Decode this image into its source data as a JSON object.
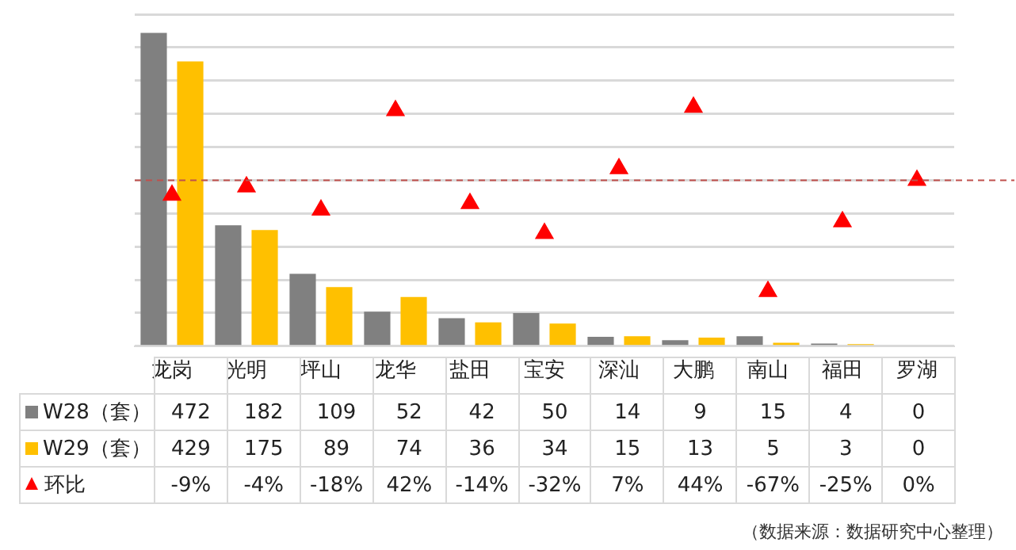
{
  "chart_data": {
    "type": "bar",
    "categories": [
      "龙岗",
      "光明",
      "坪山",
      "龙华",
      "盐田",
      "宝安",
      "深汕",
      "大鹏",
      "南山",
      "福田",
      "罗湖"
    ],
    "series": [
      {
        "name": "W28（套）",
        "color": "#808080",
        "values": [
          472,
          182,
          109,
          52,
          42,
          50,
          14,
          9,
          15,
          4,
          0
        ]
      },
      {
        "name": "W29（套）",
        "color": "#ffc000",
        "values": [
          429,
          175,
          89,
          74,
          36,
          34,
          15,
          13,
          5,
          3,
          0
        ]
      },
      {
        "name": "环比",
        "type": "scatter",
        "axis": "y2",
        "marker": "triangle",
        "color": "#ff0000",
        "values": [
          -9,
          -4,
          -18,
          42,
          -14,
          -32,
          7,
          44,
          -67,
          -25,
          0
        ],
        "value_labels": [
          "-9%",
          "-4%",
          "-18%",
          "42%",
          "-14%",
          "-32%",
          "7%",
          "44%",
          "-67%",
          "-25%",
          "0%"
        ]
      }
    ],
    "ylim": [
      0,
      500
    ],
    "yticks": [
      {
        "value": 0,
        "label": null
      },
      {
        "value": 50,
        "label": null
      },
      {
        "value": 100,
        "label": null
      },
      {
        "value": 150,
        "label": null
      },
      {
        "value": 200,
        "label": null
      },
      {
        "value": 250,
        "label": null
      },
      {
        "value": 300,
        "label": null
      },
      {
        "value": 350,
        "label": null
      },
      {
        "value": 400,
        "label": null
      },
      {
        "value": 450,
        "label": null
      },
      {
        "value": 500,
        "label": null
      }
    ],
    "y2lim": [
      -100,
      100
    ],
    "grid": "y",
    "ref_lines": [
      {
        "axis": "y2",
        "value": 0,
        "color": "#c0504d",
        "line_style": "dashed"
      }
    ],
    "data_labels": true,
    "legend": "bottom",
    "tick_labels": "x",
    "annotations": [
      "（数据来源：数据研究中心整理）"
    ]
  }
}
